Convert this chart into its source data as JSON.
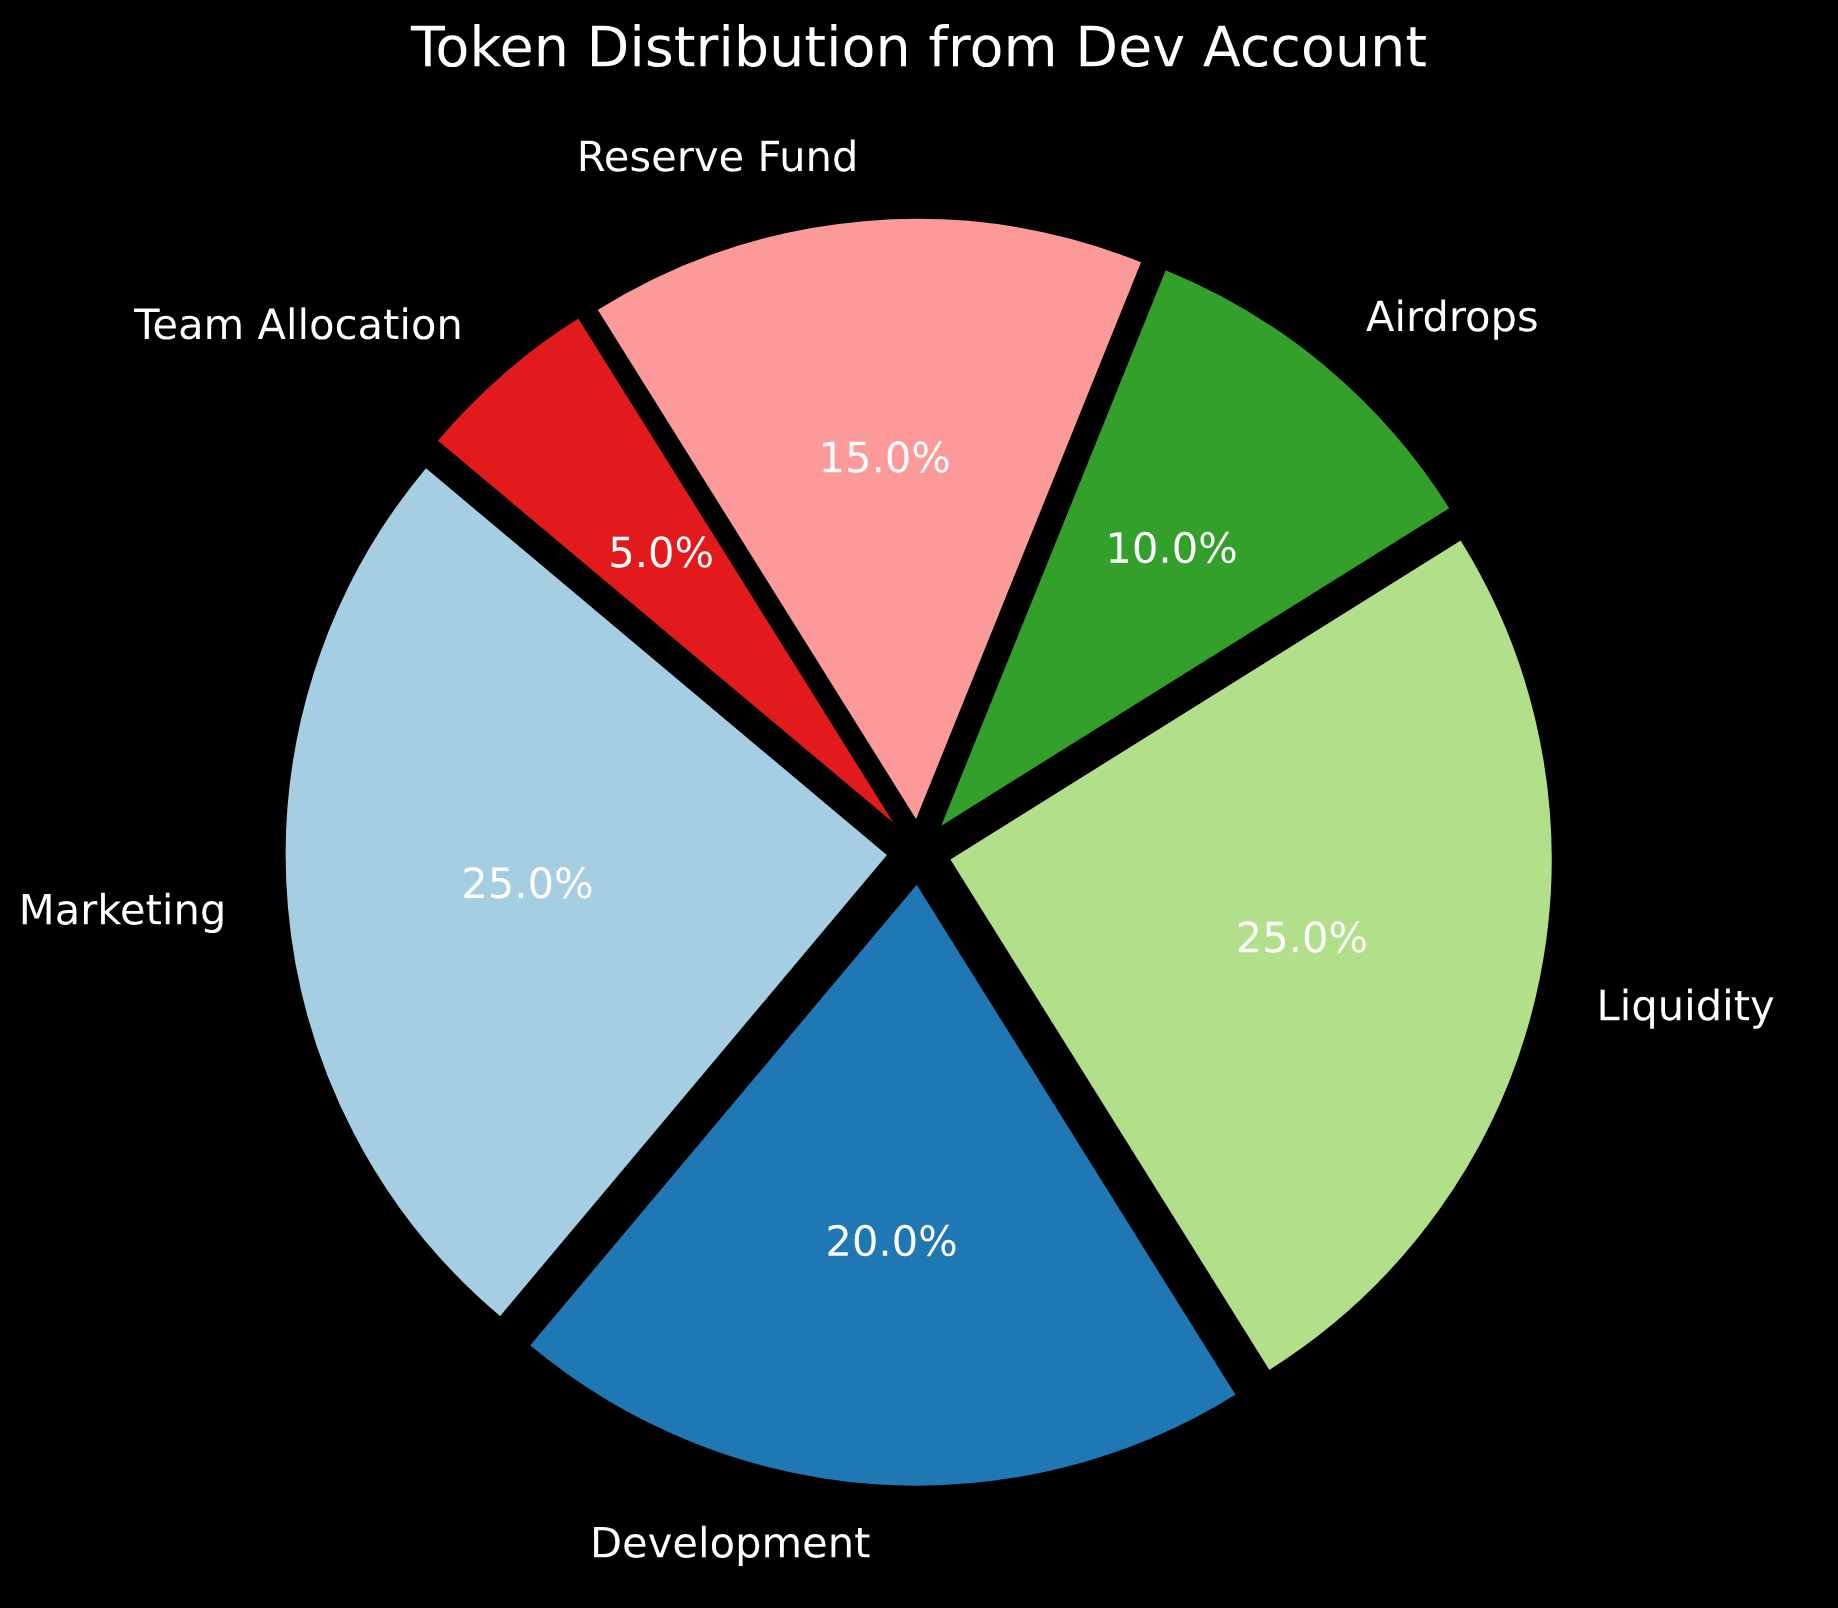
{
  "chart_data": {
    "type": "pie",
    "title": "Token Distribution from Dev Account",
    "categories": [
      "Marketing",
      "Development",
      "Liquidity",
      "Airdrops",
      "Reserve Fund",
      "Team Allocation"
    ],
    "values": [
      25,
      20,
      25,
      10,
      15,
      5
    ],
    "value_labels": [
      "25.0%",
      "20.0%",
      "25.0%",
      "10.0%",
      "15.0%",
      "5.0%"
    ],
    "colors": [
      "#a6cee3",
      "#1f78b4",
      "#b2df8a",
      "#33a02c",
      "#fb9a99",
      "#e31a1c"
    ]
  }
}
